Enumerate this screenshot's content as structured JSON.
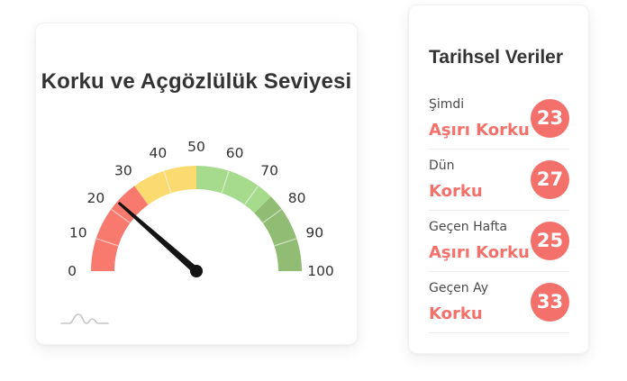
{
  "chart_data": {
    "type": "gauge",
    "title": "Korku ve Açgözlülük Seviyesi",
    "min": 0,
    "max": 100,
    "value": 23,
    "tick_labels": [
      "0",
      "10",
      "20",
      "30",
      "40",
      "50",
      "60",
      "70",
      "80",
      "90",
      "100"
    ],
    "minor_tick_values": [
      10,
      20,
      40,
      60,
      70,
      80,
      90
    ],
    "segments": [
      {
        "from": 0,
        "to": 30,
        "color": "#f8796e"
      },
      {
        "from": 30,
        "to": 50,
        "color": "#fbda6f"
      },
      {
        "from": 50,
        "to": 75,
        "color": "#a6da8d"
      },
      {
        "from": 75,
        "to": 100,
        "color": "#90bd73"
      }
    ],
    "needle_color": "#141414",
    "tick_label_color": "#333333"
  },
  "history": {
    "title": "Tarihsel Veriler",
    "rows": [
      {
        "label": "Şimdi",
        "status": "Aşırı Korku",
        "value": "23"
      },
      {
        "label": "Dün",
        "status": "Korku",
        "value": "27"
      },
      {
        "label": "Geçen Hafta",
        "status": "Aşırı Korku",
        "value": "25"
      },
      {
        "label": "Geçen Ay",
        "status": "Korku",
        "value": "33"
      }
    ]
  },
  "colors": {
    "accent_salmon": "#f4716b",
    "card_background": "#ffffff",
    "divider": "#ececec",
    "label_gray": "#4a4a4a"
  },
  "icons": {
    "waves": "sparkline-waves-icon"
  }
}
